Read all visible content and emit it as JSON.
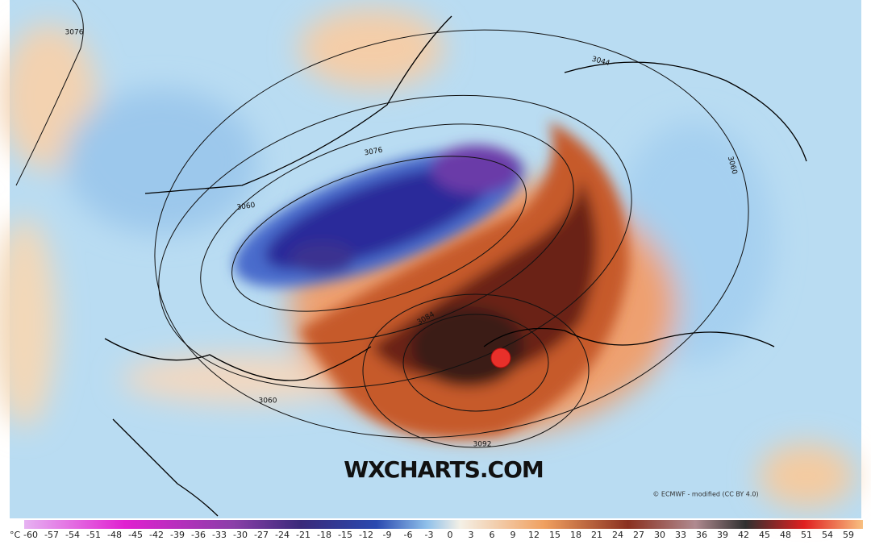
{
  "map": {
    "contour_labels": [
      {
        "text": "3076"
      },
      {
        "text": "3060"
      },
      {
        "text": "3044"
      },
      {
        "text": "3060"
      },
      {
        "text": "3060"
      },
      {
        "text": "3092"
      },
      {
        "text": "3084"
      },
      {
        "text": "3076"
      }
    ],
    "watermark": "WXCHARTS.COM",
    "credit": "© ECMWF - modified (CC BY 4.0)"
  },
  "colorbar": {
    "unit": "°C",
    "ticks": [
      -60,
      -57,
      -54,
      -51,
      -48,
      -45,
      -42,
      -39,
      -36,
      -33,
      -30,
      -27,
      -24,
      -21,
      -18,
      -15,
      -12,
      -9,
      -6,
      -3,
      0,
      3,
      6,
      9,
      12,
      15,
      18,
      21,
      24,
      27,
      30,
      33,
      36,
      39,
      42,
      45,
      48,
      51,
      54,
      59
    ]
  }
}
